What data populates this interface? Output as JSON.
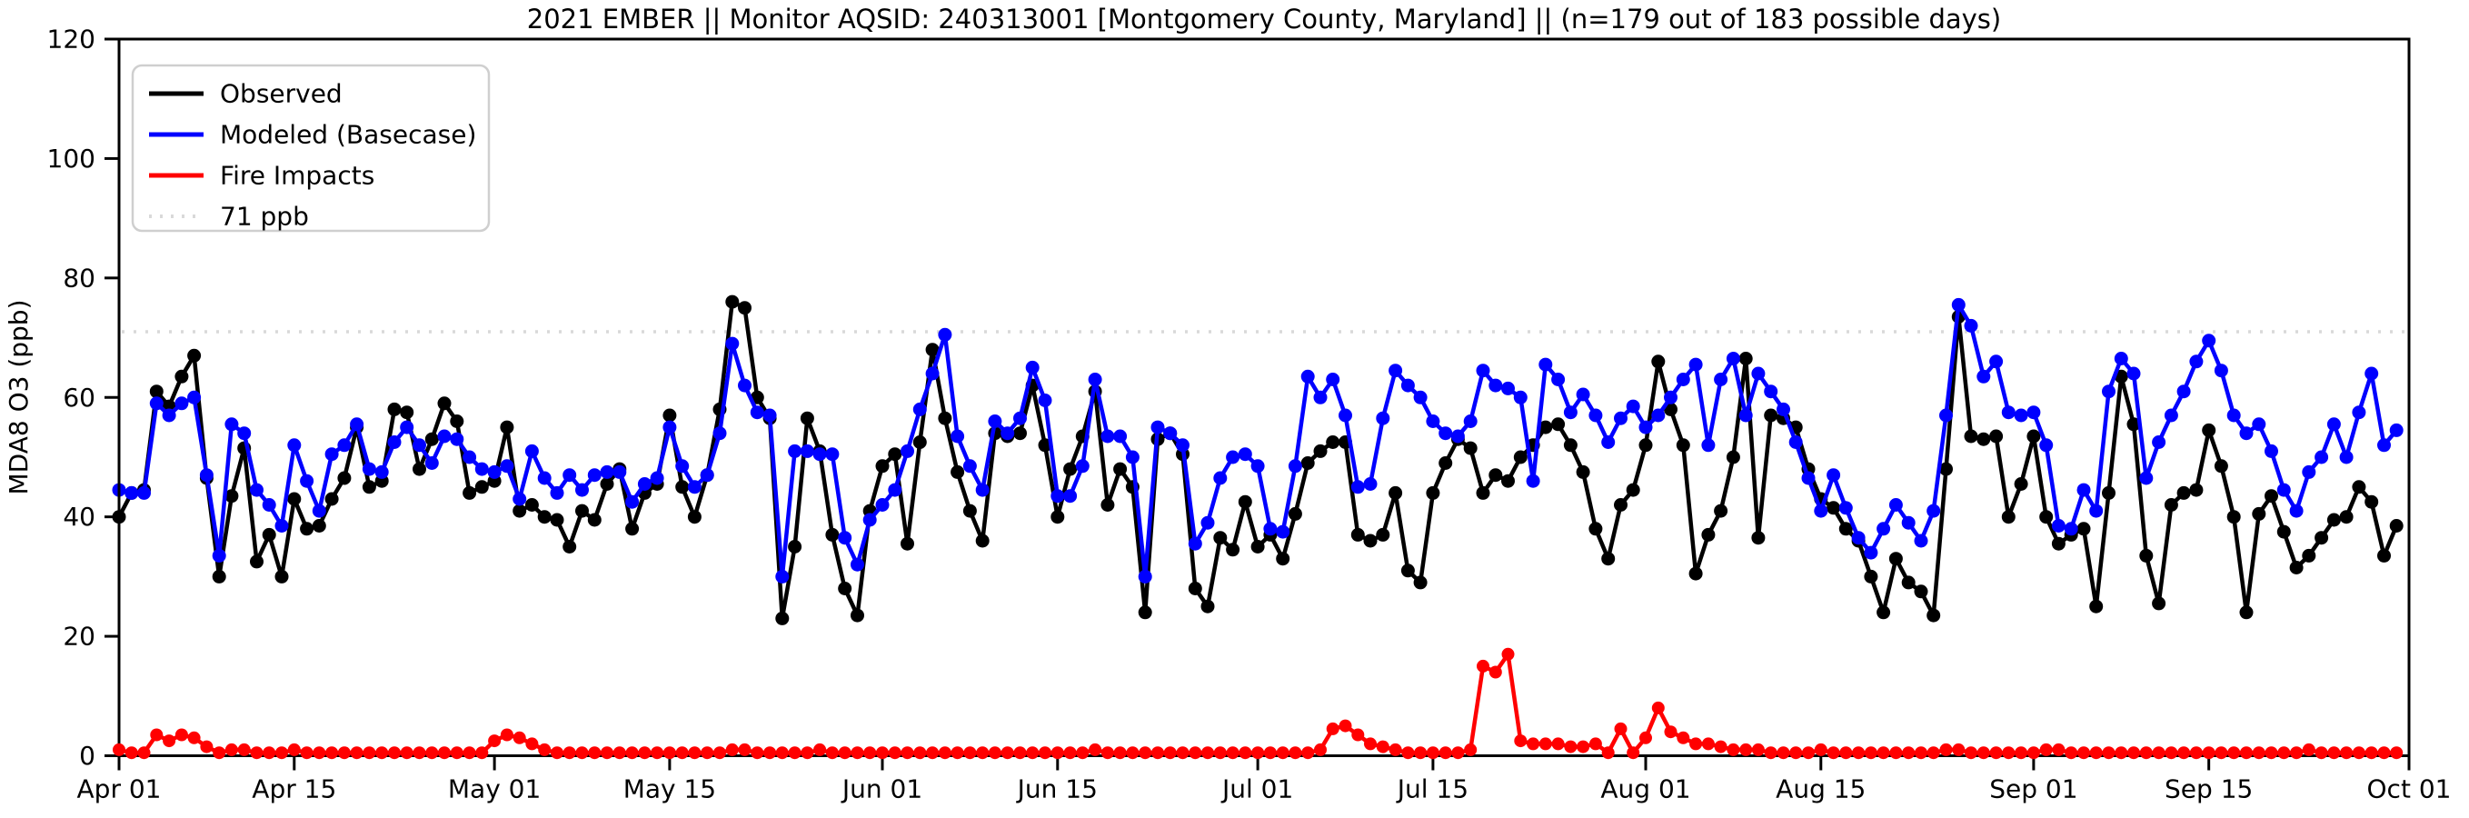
{
  "title": "2021 EMBER || Monitor AQSID: 240313001 [Montgomery County, Maryland] || (n=179 out of 183 possible days)",
  "axes": {
    "ylabel": "MDA8 O3 (ppb)",
    "ylim": [
      0,
      120
    ],
    "yticks": [
      0,
      20,
      40,
      60,
      80,
      100,
      120
    ],
    "xticks": [
      {
        "label": "Apr 01",
        "day": 0
      },
      {
        "label": "Apr 15",
        "day": 14
      },
      {
        "label": "May 01",
        "day": 30
      },
      {
        "label": "May 15",
        "day": 44
      },
      {
        "label": "Jun 01",
        "day": 61
      },
      {
        "label": "Jun 15",
        "day": 75
      },
      {
        "label": "Jul 01",
        "day": 91
      },
      {
        "label": "Jul 15",
        "day": 105
      },
      {
        "label": "Aug 01",
        "day": 122
      },
      {
        "label": "Aug 15",
        "day": 136
      },
      {
        "label": "Sep 01",
        "day": 153
      },
      {
        "label": "Sep 15",
        "day": 167
      },
      {
        "label": "Oct 01",
        "day": 183
      }
    ]
  },
  "legend": {
    "position": "upper-left",
    "entries": [
      {
        "label": "Observed",
        "color": "#000000",
        "style": "solid"
      },
      {
        "label": "Modeled (Basecase)",
        "color": "#0000ff",
        "style": "solid"
      },
      {
        "label": "Fire Impacts",
        "color": "#ff0000",
        "style": "solid"
      },
      {
        "label": "71 ppb",
        "color": "#d9d9d9",
        "style": "dotted"
      }
    ]
  },
  "chart_data": {
    "type": "line",
    "title": "2021 EMBER || Monitor AQSID: 240313001 [Montgomery County, Maryland] || (n=179 out of 183 possible days)",
    "xlabel": "",
    "ylabel": "MDA8 O3 (ppb)",
    "ylim": [
      0,
      120
    ],
    "x_start": "Apr 01 2021",
    "x_end": "Sep 30 2021",
    "n_points": 183,
    "ref_line": {
      "label": "71 ppb",
      "value": 71,
      "color": "#d9d9d9"
    },
    "series": [
      {
        "name": "Observed",
        "color": "#000000",
        "values": [
          40,
          44,
          44.5,
          61,
          58.5,
          63.5,
          67,
          46.5,
          30,
          43.5,
          51.5,
          32.5,
          37,
          30,
          43,
          38,
          38.5,
          43,
          46.5,
          55,
          45,
          46,
          58,
          57.5,
          48,
          53,
          59,
          56,
          44,
          45,
          46,
          55,
          41,
          42,
          40,
          39.5,
          35,
          41,
          39.5,
          45.5,
          48,
          38,
          44,
          45.5,
          57,
          45,
          40,
          47,
          58,
          76,
          75,
          60,
          56.5,
          23,
          35,
          56.5,
          51,
          37,
          28,
          23.5,
          41,
          48.5,
          50.5,
          35.5,
          52.5,
          68,
          56.5,
          47.5,
          41,
          36,
          54,
          53.5,
          54,
          62,
          52,
          40,
          48,
          53.5,
          61,
          42,
          48,
          45,
          24,
          53,
          54,
          50.5,
          28,
          25,
          36.5,
          34.5,
          42.5,
          35,
          37,
          33,
          40.5,
          49,
          51,
          52.5,
          52.5,
          37,
          36,
          37,
          44,
          31,
          29,
          44,
          49,
          53,
          51.5,
          44,
          47,
          46,
          50,
          52,
          55,
          55.5,
          52,
          47.5,
          38,
          33,
          42,
          44.5,
          52,
          66,
          58,
          52,
          30.5,
          37,
          41,
          50,
          66.5,
          36.5,
          57,
          56.5,
          55,
          48,
          43,
          41.5,
          38,
          36,
          30,
          24,
          33,
          29,
          27.5,
          23.5,
          48,
          73.5,
          53.5,
          53,
          53.5,
          40,
          45.5,
          53.5,
          40,
          35.5,
          37,
          38,
          25,
          44,
          63.5,
          55.5,
          33.5,
          25.5,
          42,
          44,
          44.5,
          54.5,
          48.5,
          40,
          24,
          40.5,
          43.5,
          37.5,
          31.5,
          33.5,
          36.5,
          39.5,
          40,
          45,
          42.5,
          33.5,
          38.5
        ]
      },
      {
        "name": "Modeled (Basecase)",
        "color": "#0000ff",
        "values": [
          44.5,
          44,
          44,
          59,
          57,
          59,
          60,
          47,
          33.5,
          55.5,
          54,
          44.5,
          42,
          38.5,
          52,
          46,
          41,
          50.5,
          52,
          55.5,
          48,
          47.5,
          52.5,
          55,
          52,
          49,
          53.5,
          53,
          50,
          48,
          47.5,
          48.5,
          43,
          51,
          46.5,
          44,
          47,
          44.5,
          47,
          47.5,
          47.5,
          42.5,
          45.5,
          46.5,
          55,
          48.5,
          45,
          47,
          54,
          69,
          62,
          57.5,
          57,
          30,
          51,
          51,
          50.5,
          50.5,
          36.5,
          32,
          39.5,
          42,
          44.5,
          51,
          58,
          64,
          70.5,
          53.5,
          48.5,
          44.5,
          56,
          54,
          56.5,
          65,
          59.5,
          43.5,
          43.5,
          48.5,
          63,
          53.5,
          53.5,
          50,
          30,
          55,
          54,
          52,
          35.5,
          39,
          46.5,
          50,
          50.5,
          48.5,
          38,
          37.5,
          48.5,
          63.5,
          60,
          63,
          57,
          45,
          45.5,
          56.5,
          64.5,
          62,
          60,
          56,
          54,
          53.5,
          56,
          64.5,
          62,
          61.5,
          60,
          46,
          65.5,
          63,
          57.5,
          60.5,
          57,
          52.5,
          56.5,
          58.5,
          55,
          57,
          60,
          63,
          65.5,
          52,
          63,
          66.5,
          57,
          64,
          61,
          58,
          52.5,
          46.5,
          41,
          47,
          41.5,
          36.5,
          34,
          38,
          42,
          39,
          36,
          41,
          57,
          75.5,
          72,
          63.5,
          66,
          57.5,
          57,
          57.5,
          52,
          38.5,
          38,
          44.5,
          41,
          61,
          66.5,
          64,
          46.5,
          52.5,
          57,
          61,
          66,
          69.5,
          64.5,
          57,
          54,
          55.5,
          51,
          44.5,
          41,
          47.5,
          50,
          55.5,
          50,
          57.5,
          64,
          52,
          54.5
        ]
      },
      {
        "name": "Fire Impacts",
        "color": "#ff0000",
        "values": [
          1,
          0.5,
          0.5,
          3.5,
          2.5,
          3.5,
          3,
          1.5,
          0.5,
          1,
          1,
          0.5,
          0.5,
          0.5,
          1,
          0.5,
          0.5,
          0.5,
          0.5,
          0.5,
          0.5,
          0.5,
          0.5,
          0.5,
          0.5,
          0.5,
          0.5,
          0.5,
          0.5,
          0.5,
          2.5,
          3.5,
          3,
          2,
          1,
          0.5,
          0.5,
          0.5,
          0.5,
          0.5,
          0.5,
          0.5,
          0.5,
          0.5,
          0.5,
          0.5,
          0.5,
          0.5,
          0.5,
          1,
          1,
          0.5,
          0.5,
          0.5,
          0.5,
          0.5,
          1,
          0.5,
          0.5,
          0.5,
          0.5,
          0.5,
          0.5,
          0.5,
          0.5,
          0.5,
          0.5,
          0.5,
          0.5,
          0.5,
          0.5,
          0.5,
          0.5,
          0.5,
          0.5,
          0.5,
          0.5,
          0.5,
          1,
          0.5,
          0.5,
          0.5,
          0.5,
          0.5,
          0.5,
          0.5,
          0.5,
          0.5,
          0.5,
          0.5,
          0.5,
          0.5,
          0.5,
          0.5,
          0.5,
          0.5,
          1,
          4.5,
          5,
          3.5,
          2,
          1.5,
          1,
          0.5,
          0.5,
          0.5,
          0.5,
          0.5,
          1,
          15,
          14,
          17,
          2.5,
          2,
          2,
          2,
          1.5,
          1.5,
          2,
          0.5,
          4.5,
          0.5,
          3,
          8,
          4,
          3,
          2,
          2,
          1.5,
          1,
          1,
          1,
          0.5,
          0.5,
          0.5,
          0.5,
          1,
          0.5,
          0.5,
          0.5,
          0.5,
          0.5,
          0.5,
          0.5,
          0.5,
          0.5,
          1,
          1,
          0.5,
          0.5,
          0.5,
          0.5,
          0.5,
          0.5,
          1,
          1,
          0.5,
          0.5,
          0.5,
          0.5,
          0.5,
          0.5,
          0.5,
          0.5,
          0.5,
          0.5,
          0.5,
          0.5,
          0.5,
          0.5,
          0.5,
          0.5,
          0.5,
          0.5,
          0.5,
          1,
          0.5,
          0.5,
          0.5,
          0.5,
          0.5,
          0.5,
          0.5
        ]
      }
    ]
  }
}
